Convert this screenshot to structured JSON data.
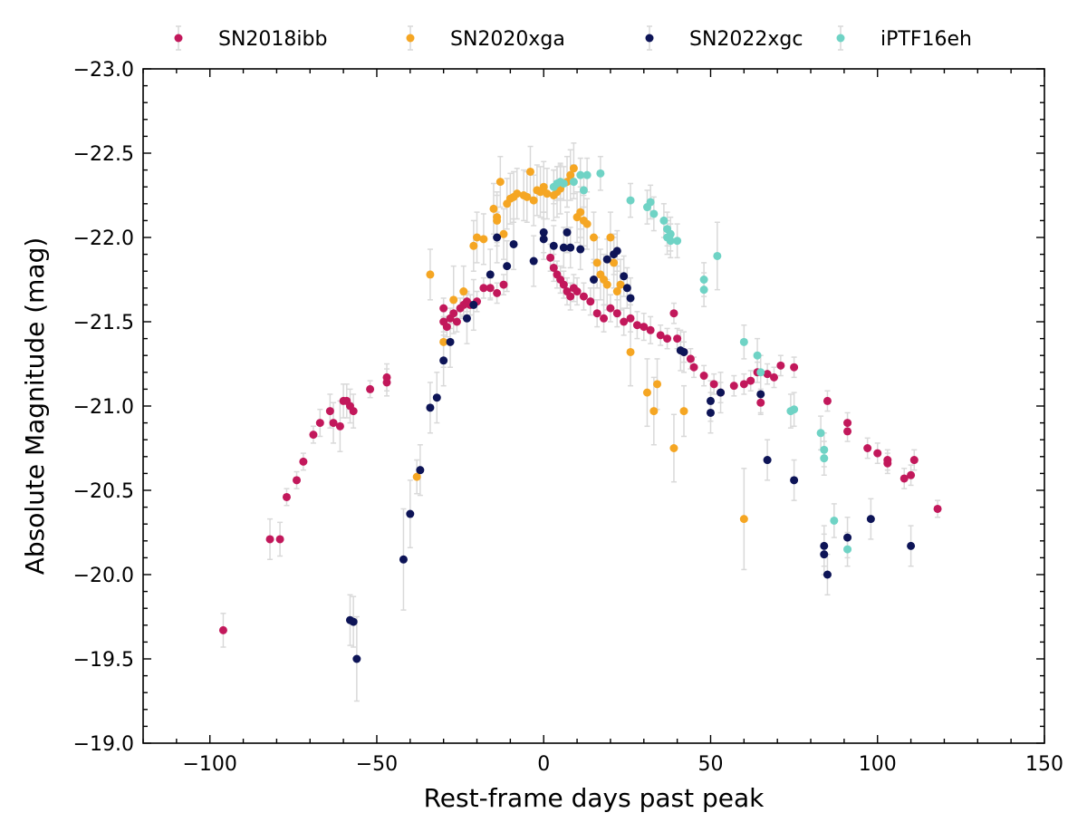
{
  "chart_data": {
    "type": "scatter",
    "title": "",
    "xlabel": "Rest-frame days past peak",
    "ylabel": "Absolute Magnitude (mag)",
    "xlim": [
      -120,
      150
    ],
    "ylim": [
      -19.0,
      -23.0
    ],
    "y_inverted": true,
    "xticks": [
      -100,
      -50,
      0,
      50,
      100,
      150
    ],
    "yticks": [
      -23.0,
      -22.5,
      -22.0,
      -21.5,
      -21.0,
      -20.5,
      -20.0,
      -19.5,
      -19.0
    ],
    "xtick_labels": [
      "−100",
      "−50",
      "0",
      "50",
      "100",
      "150"
    ],
    "ytick_labels": [
      "−23.0",
      "−22.5",
      "−22.0",
      "−21.5",
      "−21.0",
      "−20.5",
      "−20.0",
      "−19.5",
      "−19.0"
    ],
    "grid": false,
    "legend_position": "top",
    "errorbar_color": "#d9d9d9",
    "series": [
      {
        "name": "SN2018ibb",
        "color": "#c2185b",
        "points": [
          [
            -96,
            -19.67,
            0.1
          ],
          [
            -82,
            -20.21,
            0.12
          ],
          [
            -79,
            -20.21,
            0.1
          ],
          [
            -77,
            -20.46,
            0.05
          ],
          [
            -74,
            -20.56,
            0.05
          ],
          [
            -72,
            -20.67,
            0.05
          ],
          [
            -69,
            -20.83,
            0.05
          ],
          [
            -67,
            -20.9,
            0.08
          ],
          [
            -64,
            -20.97,
            0.1
          ],
          [
            -63,
            -20.9,
            0.12
          ],
          [
            -61,
            -20.88,
            0.15
          ],
          [
            -60,
            -21.03,
            0.1
          ],
          [
            -59,
            -21.03,
            0.1
          ],
          [
            -58,
            -21.0,
            0.1
          ],
          [
            -57,
            -20.97,
            0.1
          ],
          [
            -52,
            -21.1,
            0.05
          ],
          [
            -47,
            -21.17,
            0.08
          ],
          [
            -47,
            -21.14,
            0.08
          ],
          [
            -30,
            -21.58,
            0.06
          ],
          [
            -30,
            -21.5,
            0.06
          ],
          [
            -29,
            -21.47,
            0.06
          ],
          [
            -28,
            -21.52,
            0.06
          ],
          [
            -27,
            -21.55,
            0.06
          ],
          [
            -26,
            -21.5,
            0.06
          ],
          [
            -25,
            -21.58,
            0.06
          ],
          [
            -24,
            -21.6,
            0.06
          ],
          [
            -23,
            -21.62,
            0.06
          ],
          [
            -22,
            -21.6,
            0.06
          ],
          [
            -20,
            -21.62,
            0.06
          ],
          [
            -18,
            -21.7,
            0.06
          ],
          [
            -16,
            -21.7,
            0.06
          ],
          [
            -14,
            -21.67,
            0.06
          ],
          [
            -12,
            -21.72,
            0.06
          ],
          [
            2,
            -21.88,
            0.08
          ],
          [
            3,
            -21.82,
            0.08
          ],
          [
            4,
            -21.78,
            0.08
          ],
          [
            5,
            -21.75,
            0.08
          ],
          [
            6,
            -21.72,
            0.08
          ],
          [
            7,
            -21.68,
            0.08
          ],
          [
            8,
            -21.65,
            0.08
          ],
          [
            9,
            -21.7,
            0.08
          ],
          [
            10,
            -21.68,
            0.08
          ],
          [
            12,
            -21.65,
            0.08
          ],
          [
            14,
            -21.62,
            0.08
          ],
          [
            16,
            -21.55,
            0.08
          ],
          [
            18,
            -21.52,
            0.08
          ],
          [
            20,
            -21.58,
            0.08
          ],
          [
            22,
            -21.55,
            0.08
          ],
          [
            24,
            -21.5,
            0.08
          ],
          [
            26,
            -21.52,
            0.08
          ],
          [
            28,
            -21.48,
            0.08
          ],
          [
            30,
            -21.47,
            0.08
          ],
          [
            32,
            -21.45,
            0.08
          ],
          [
            35,
            -21.42,
            0.06
          ],
          [
            37,
            -21.4,
            0.06
          ],
          [
            39,
            -21.55,
            0.06
          ],
          [
            40,
            -21.4,
            0.06
          ],
          [
            42,
            -21.32,
            0.06
          ],
          [
            44,
            -21.28,
            0.06
          ],
          [
            45,
            -21.23,
            0.06
          ],
          [
            48,
            -21.18,
            0.06
          ],
          [
            51,
            -21.13,
            0.06
          ],
          [
            53,
            -21.08,
            0.06
          ],
          [
            57,
            -21.12,
            0.06
          ],
          [
            60,
            -21.13,
            0.06
          ],
          [
            62,
            -21.15,
            0.06
          ],
          [
            64,
            -21.2,
            0.06
          ],
          [
            65,
            -21.02,
            0.06
          ],
          [
            67,
            -21.19,
            0.06
          ],
          [
            69,
            -21.17,
            0.06
          ],
          [
            71,
            -21.24,
            0.06
          ],
          [
            75,
            -21.23,
            0.06
          ],
          [
            85,
            -21.03,
            0.06
          ],
          [
            91,
            -20.9,
            0.06
          ],
          [
            91,
            -20.85,
            0.06
          ],
          [
            97,
            -20.75,
            0.06
          ],
          [
            100,
            -20.72,
            0.06
          ],
          [
            103,
            -20.68,
            0.06
          ],
          [
            103,
            -20.66,
            0.06
          ],
          [
            108,
            -20.57,
            0.06
          ],
          [
            110,
            -20.59,
            0.06
          ],
          [
            111,
            -20.68,
            0.06
          ],
          [
            118,
            -20.39,
            0.05
          ]
        ]
      },
      {
        "name": "SN2020xga",
        "color": "#f5a623",
        "points": [
          [
            -34,
            -21.78,
            0.15
          ],
          [
            -30,
            -21.38,
            0.15
          ],
          [
            -27,
            -21.63,
            0.2
          ],
          [
            -24,
            -21.68,
            0.15
          ],
          [
            -21,
            -21.95,
            0.15
          ],
          [
            -20,
            -22.0,
            0.15
          ],
          [
            -18,
            -21.99,
            0.15
          ],
          [
            -15,
            -22.17,
            0.15
          ],
          [
            -14,
            -22.12,
            0.15
          ],
          [
            -14,
            -22.1,
            0.15
          ],
          [
            -13,
            -22.33,
            0.15
          ],
          [
            -12,
            -22.02,
            0.15
          ],
          [
            -11,
            -22.2,
            0.15
          ],
          [
            -10,
            -22.23,
            0.15
          ],
          [
            -9,
            -22.24,
            0.15
          ],
          [
            -8,
            -22.26,
            0.15
          ],
          [
            -6,
            -22.25,
            0.15
          ],
          [
            -5,
            -22.24,
            0.15
          ],
          [
            -4,
            -22.39,
            0.15
          ],
          [
            -3,
            -22.22,
            0.15
          ],
          [
            -2,
            -22.28,
            0.15
          ],
          [
            -1,
            -22.27,
            0.15
          ],
          [
            0,
            -22.3,
            0.15
          ],
          [
            1,
            -22.26,
            0.15
          ],
          [
            3,
            -22.25,
            0.15
          ],
          [
            4,
            -22.27,
            0.15
          ],
          [
            5,
            -22.29,
            0.15
          ],
          [
            7,
            -22.33,
            0.15
          ],
          [
            8,
            -22.37,
            0.15
          ],
          [
            9,
            -22.41,
            0.15
          ],
          [
            10,
            -22.12,
            0.15
          ],
          [
            11,
            -22.15,
            0.15
          ],
          [
            12,
            -22.1,
            0.15
          ],
          [
            13,
            -22.08,
            0.15
          ],
          [
            15,
            -22.0,
            0.15
          ],
          [
            16,
            -21.85,
            0.15
          ],
          [
            17,
            -21.78,
            0.15
          ],
          [
            18,
            -21.75,
            0.15
          ],
          [
            19,
            -21.72,
            0.15
          ],
          [
            20,
            -22.0,
            0.15
          ],
          [
            21,
            -21.85,
            0.15
          ],
          [
            22,
            -21.68,
            0.15
          ],
          [
            23,
            -21.72,
            0.15
          ],
          [
            26,
            -21.32,
            0.2
          ],
          [
            31,
            -21.08,
            0.2
          ],
          [
            33,
            -20.97,
            0.2
          ],
          [
            34,
            -21.13,
            0.15
          ],
          [
            39,
            -20.75,
            0.2
          ],
          [
            42,
            -20.97,
            0.15
          ],
          [
            60,
            -20.33,
            0.3
          ],
          [
            -38,
            -20.58,
            0.1
          ]
        ]
      },
      {
        "name": "SN2022xgc",
        "color": "#0d1457",
        "points": [
          [
            -58,
            -19.73,
            0.15
          ],
          [
            -57,
            -19.72,
            0.15
          ],
          [
            -56,
            -19.5,
            0.25
          ],
          [
            -42,
            -20.09,
            0.3
          ],
          [
            -40,
            -20.36,
            0.2
          ],
          [
            -37,
            -20.62,
            0.15
          ],
          [
            -34,
            -20.99,
            0.15
          ],
          [
            -32,
            -21.05,
            0.15
          ],
          [
            -30,
            -21.27,
            0.15
          ],
          [
            -28,
            -21.38,
            0.15
          ],
          [
            -23,
            -21.52,
            0.15
          ],
          [
            -21,
            -21.6,
            0.15
          ],
          [
            -16,
            -21.78,
            0.15
          ],
          [
            -14,
            -22.0,
            0.15
          ],
          [
            -11,
            -21.83,
            0.15
          ],
          [
            -9,
            -21.96,
            0.15
          ],
          [
            -3,
            -21.86,
            0.15
          ],
          [
            0,
            -22.03,
            0.12
          ],
          [
            0,
            -21.99,
            0.12
          ],
          [
            3,
            -21.95,
            0.12
          ],
          [
            6,
            -21.94,
            0.12
          ],
          [
            7,
            -22.03,
            0.12
          ],
          [
            8,
            -21.94,
            0.12
          ],
          [
            11,
            -21.93,
            0.12
          ],
          [
            15,
            -21.75,
            0.12
          ],
          [
            19,
            -21.87,
            0.12
          ],
          [
            21,
            -21.9,
            0.12
          ],
          [
            22,
            -21.92,
            0.12
          ],
          [
            24,
            -21.77,
            0.12
          ],
          [
            25,
            -21.7,
            0.12
          ],
          [
            26,
            -21.64,
            0.12
          ],
          [
            41,
            -21.33,
            0.12
          ],
          [
            42,
            -21.32,
            0.12
          ],
          [
            50,
            -21.03,
            0.12
          ],
          [
            50,
            -20.96,
            0.12
          ],
          [
            53,
            -21.08,
            0.12
          ],
          [
            65,
            -21.07,
            0.12
          ],
          [
            67,
            -20.68,
            0.12
          ],
          [
            75,
            -20.56,
            0.12
          ],
          [
            84,
            -20.17,
            0.12
          ],
          [
            84,
            -20.12,
            0.12
          ],
          [
            85,
            -20.0,
            0.12
          ],
          [
            91,
            -20.22,
            0.12
          ],
          [
            98,
            -20.33,
            0.12
          ],
          [
            110,
            -20.17,
            0.12
          ]
        ]
      },
      {
        "name": "iPTF16eh",
        "color": "#6fd3c5",
        "points": [
          [
            3,
            -22.3,
            0.1
          ],
          [
            4,
            -22.32,
            0.1
          ],
          [
            5,
            -22.33,
            0.1
          ],
          [
            6,
            -22.32,
            0.1
          ],
          [
            9,
            -22.33,
            0.1
          ],
          [
            11,
            -22.37,
            0.1
          ],
          [
            12,
            -22.28,
            0.1
          ],
          [
            13,
            -22.37,
            0.1
          ],
          [
            17,
            -22.38,
            0.1
          ],
          [
            26,
            -22.22,
            0.1
          ],
          [
            31,
            -22.18,
            0.1
          ],
          [
            32,
            -22.21,
            0.1
          ],
          [
            33,
            -22.14,
            0.1
          ],
          [
            36,
            -22.1,
            0.1
          ],
          [
            37,
            -22.05,
            0.1
          ],
          [
            37,
            -22.0,
            0.1
          ],
          [
            38,
            -22.02,
            0.1
          ],
          [
            38,
            -21.98,
            0.1
          ],
          [
            40,
            -21.98,
            0.1
          ],
          [
            48,
            -21.75,
            0.1
          ],
          [
            48,
            -21.69,
            0.1
          ],
          [
            52,
            -21.89,
            0.2
          ],
          [
            60,
            -21.38,
            0.1
          ],
          [
            64,
            -21.3,
            0.1
          ],
          [
            65,
            -21.2,
            0.1
          ],
          [
            74,
            -20.97,
            0.1
          ],
          [
            75,
            -20.98,
            0.1
          ],
          [
            83,
            -20.84,
            0.1
          ],
          [
            84,
            -20.74,
            0.1
          ],
          [
            84,
            -20.69,
            0.1
          ],
          [
            87,
            -20.32,
            0.1
          ],
          [
            91,
            -20.15,
            0.1
          ]
        ]
      }
    ]
  }
}
